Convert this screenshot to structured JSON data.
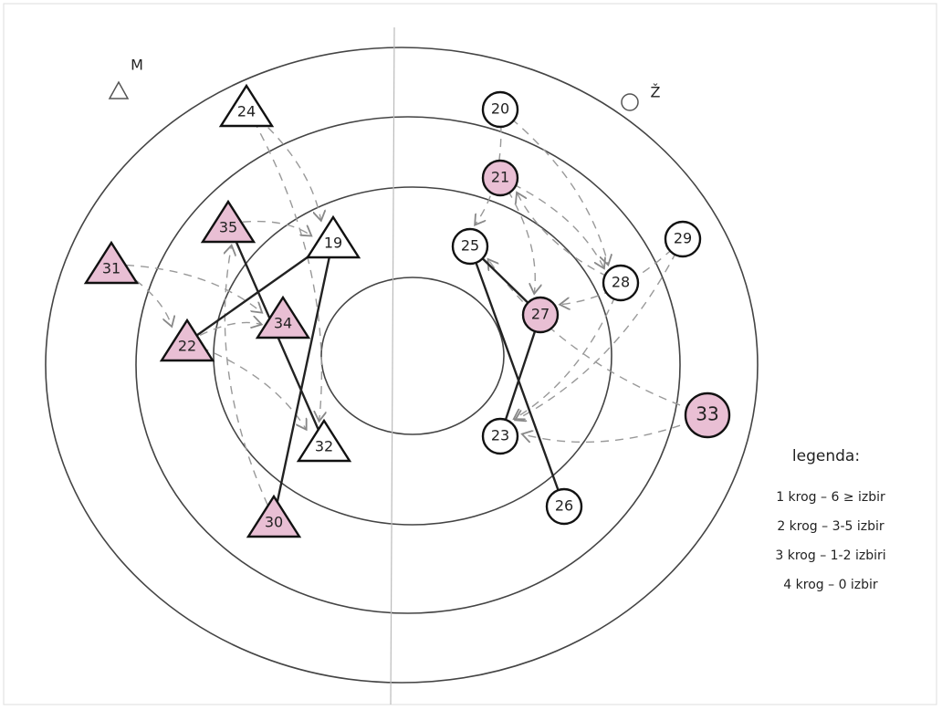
{
  "legend_symbols": {
    "triangle_label": "M",
    "circle_label": "Ž"
  },
  "nodes": [
    {
      "label": "24",
      "shape": "triangle",
      "highlighted": false
    },
    {
      "label": "35",
      "shape": "triangle",
      "highlighted": true
    },
    {
      "label": "19",
      "shape": "triangle",
      "highlighted": false
    },
    {
      "label": "31",
      "shape": "triangle",
      "highlighted": true
    },
    {
      "label": "22",
      "shape": "triangle",
      "highlighted": true
    },
    {
      "label": "34",
      "shape": "triangle",
      "highlighted": true
    },
    {
      "label": "32",
      "shape": "triangle",
      "highlighted": false
    },
    {
      "label": "30",
      "shape": "triangle",
      "highlighted": true
    },
    {
      "label": "20",
      "shape": "circle",
      "highlighted": false
    },
    {
      "label": "21",
      "shape": "circle",
      "highlighted": true
    },
    {
      "label": "25",
      "shape": "circle",
      "highlighted": false
    },
    {
      "label": "29",
      "shape": "circle",
      "highlighted": false
    },
    {
      "label": "28",
      "shape": "circle",
      "highlighted": false
    },
    {
      "label": "27",
      "shape": "circle",
      "highlighted": true
    },
    {
      "label": "33",
      "shape": "circle",
      "highlighted": true
    },
    {
      "label": "23",
      "shape": "circle",
      "highlighted": false
    },
    {
      "label": "26",
      "shape": "circle",
      "highlighted": false
    }
  ],
  "legend": {
    "title": "legenda:",
    "items": [
      "1 krog – 6 ≥ izbir",
      "2 krog – 3-5 izbir",
      "3 krog – 1-2 izbiri",
      "4 krog – 0 izbir"
    ]
  }
}
